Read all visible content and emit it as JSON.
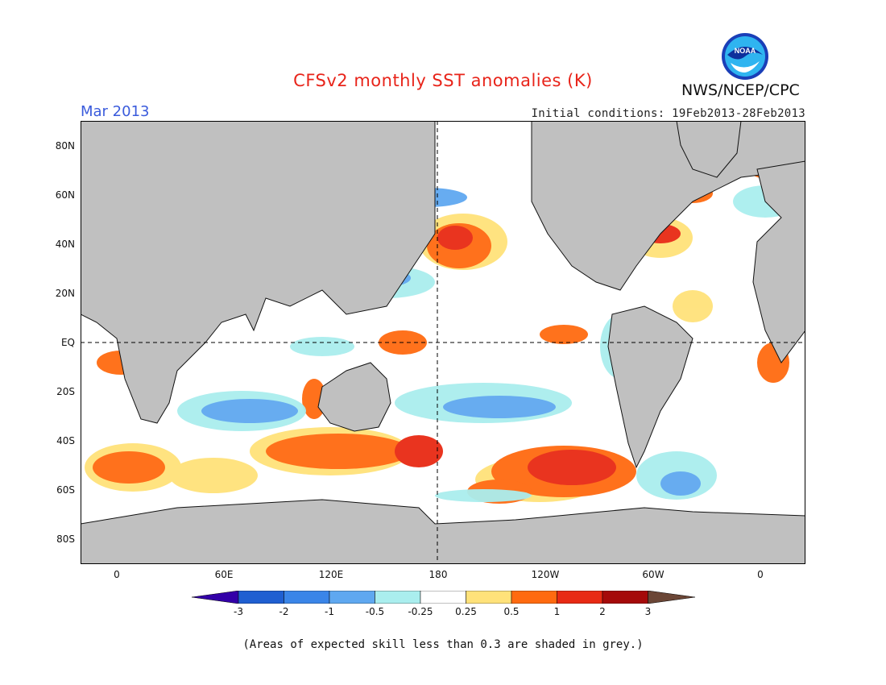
{
  "header": {
    "title": "CFSv2 monthly SST anomalies (K)",
    "agency": "NWS/NCEP/CPC",
    "logo_text": "NOAA",
    "month": "Mar 2013",
    "initial_conditions": "Initial conditions: 19Feb2013-28Feb2013"
  },
  "map": {
    "lat_labels": [
      "80N",
      "60N",
      "40N",
      "20N",
      "EQ",
      "20S",
      "40S",
      "60S",
      "80S"
    ],
    "lon_labels": [
      "0",
      "60E",
      "120E",
      "180",
      "120W",
      "60W",
      "0"
    ],
    "land_color": "#c0c0c0",
    "grid_style": "dashed lines at EQ and 180"
  },
  "colorbar": {
    "labels": [
      "-3",
      "-2",
      "-1",
      "-0.5",
      "-0.25",
      "0.25",
      "0.5",
      "1",
      "2",
      "3"
    ],
    "colors": [
      "#3300a8",
      "#1f5fd1",
      "#3a85e8",
      "#5fa8f0",
      "#aaeeee",
      "#ffffff",
      "#ffe27a",
      "#ff6a10",
      "#e82a14",
      "#a50a0a",
      "#6b4636"
    ]
  },
  "footnote": "(Areas of expected skill less than 0.3 are shaded in grey.)"
}
